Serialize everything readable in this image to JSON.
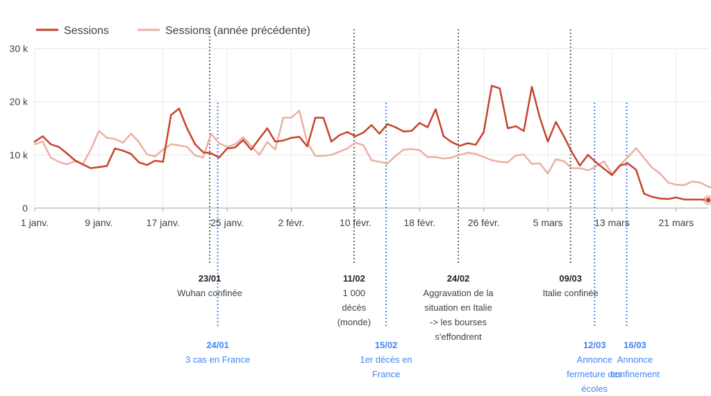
{
  "chart_data": {
    "type": "line",
    "legend_position": "top-left",
    "grid": true,
    "ylim": [
      0,
      30000
    ],
    "y_ticks": [
      {
        "value": 0,
        "label": "0"
      },
      {
        "value": 10000,
        "label": "10 k"
      },
      {
        "value": 20000,
        "label": "20 k"
      },
      {
        "value": 30000,
        "label": "30 k"
      }
    ],
    "x_ticks": [
      {
        "label": "1 janv.",
        "x": 1
      },
      {
        "label": "9 janv.",
        "x": 9
      },
      {
        "label": "17 janv.",
        "x": 17
      },
      {
        "label": "25 janv.",
        "x": 25
      },
      {
        "label": "2 févr.",
        "x": 33
      },
      {
        "label": "10 févr.",
        "x": 41
      },
      {
        "label": "18 févr.",
        "x": 49
      },
      {
        "label": "26 févr.",
        "x": 57
      },
      {
        "label": "5 mars",
        "x": 65
      },
      {
        "label": "13 mars",
        "x": 73
      },
      {
        "label": "21 mars",
        "x": 81
      }
    ],
    "series": [
      {
        "name": "Sessions",
        "color": "#c5432a",
        "values": [
          12500,
          13500,
          12000,
          11500,
          10300,
          9000,
          8200,
          7500,
          7700,
          7900,
          11200,
          10800,
          10200,
          8600,
          8100,
          8900,
          8700,
          17500,
          18700,
          15000,
          12000,
          10500,
          10300,
          9500,
          11200,
          11400,
          12800,
          11000,
          13000,
          15000,
          12500,
          12700,
          13200,
          13400,
          11600,
          17000,
          17000,
          12500,
          13700,
          14300,
          13500,
          14200,
          15600,
          14000,
          15800,
          15200,
          14400,
          14500,
          16000,
          15200,
          18600,
          13500,
          12400,
          11700,
          12200,
          11900,
          14300,
          23000,
          22500,
          15000,
          15400,
          14500,
          22800,
          17000,
          12500,
          16200,
          13500,
          10500,
          8000,
          10000,
          8600,
          7400,
          6200,
          8000,
          8400,
          7200,
          2700,
          2100,
          1800,
          1700,
          2000,
          1600,
          1600,
          1600,
          1500
        ]
      },
      {
        "name": "Sessions (année précédente)",
        "color": "#eab0a2",
        "values": [
          12000,
          12500,
          9500,
          8700,
          8200,
          8800,
          8300,
          11000,
          14500,
          13200,
          13000,
          12300,
          14000,
          12400,
          10100,
          9700,
          11000,
          12000,
          11800,
          11500,
          9900,
          9500,
          14000,
          12200,
          11500,
          12000,
          13300,
          11700,
          10000,
          12400,
          11000,
          17000,
          17000,
          18300,
          12300,
          9800,
          9800,
          10000,
          10600,
          11200,
          12300,
          11800,
          9000,
          8700,
          8400,
          9800,
          11000,
          11100,
          10900,
          9600,
          9600,
          9300,
          9500,
          10000,
          10400,
          10200,
          9600,
          9000,
          8700,
          8600,
          9900,
          10100,
          8300,
          8400,
          6500,
          9200,
          8800,
          7500,
          7500,
          7100,
          7800,
          8800,
          6400,
          8100,
          9600,
          11300,
          9400,
          7600,
          6500,
          4800,
          4400,
          4300,
          5000,
          4800,
          4000,
          3800
        ]
      }
    ],
    "annotations": [
      {
        "x": 23,
        "color": "#5f6368",
        "style": "dark",
        "date": "23/01",
        "lines": [
          "Wuhan confinée"
        ]
      },
      {
        "x": 24,
        "color": "#4285f4",
        "style": "blue",
        "date": "24/01",
        "lines": [
          "3 cas en France"
        ]
      },
      {
        "x": 41,
        "color": "#5f6368",
        "style": "dark",
        "date": "11/02",
        "lines": [
          "1 000",
          "décès",
          "(monde)"
        ]
      },
      {
        "x": 45,
        "color": "#4285f4",
        "style": "blue",
        "date": "15/02",
        "lines": [
          "1er décès en",
          "France"
        ]
      },
      {
        "x": 54,
        "color": "#5f6368",
        "style": "dark",
        "date": "24/02",
        "lines": [
          "Aggravation de la",
          "situation en Italie",
          "-> les bourses",
          "s'effondrent"
        ]
      },
      {
        "x": 68,
        "color": "#5f6368",
        "style": "dark",
        "date": "09/03",
        "lines": [
          "Italie confinée"
        ]
      },
      {
        "x": 71,
        "color": "#4285f4",
        "style": "blue",
        "date": "12/03",
        "lines": [
          "Annonce",
          "fermeture des",
          "écoles"
        ]
      },
      {
        "x": 75,
        "color": "#4285f4",
        "style": "blue",
        "date": "16/03",
        "lines": [
          "Annonce",
          "confinement"
        ]
      }
    ]
  }
}
